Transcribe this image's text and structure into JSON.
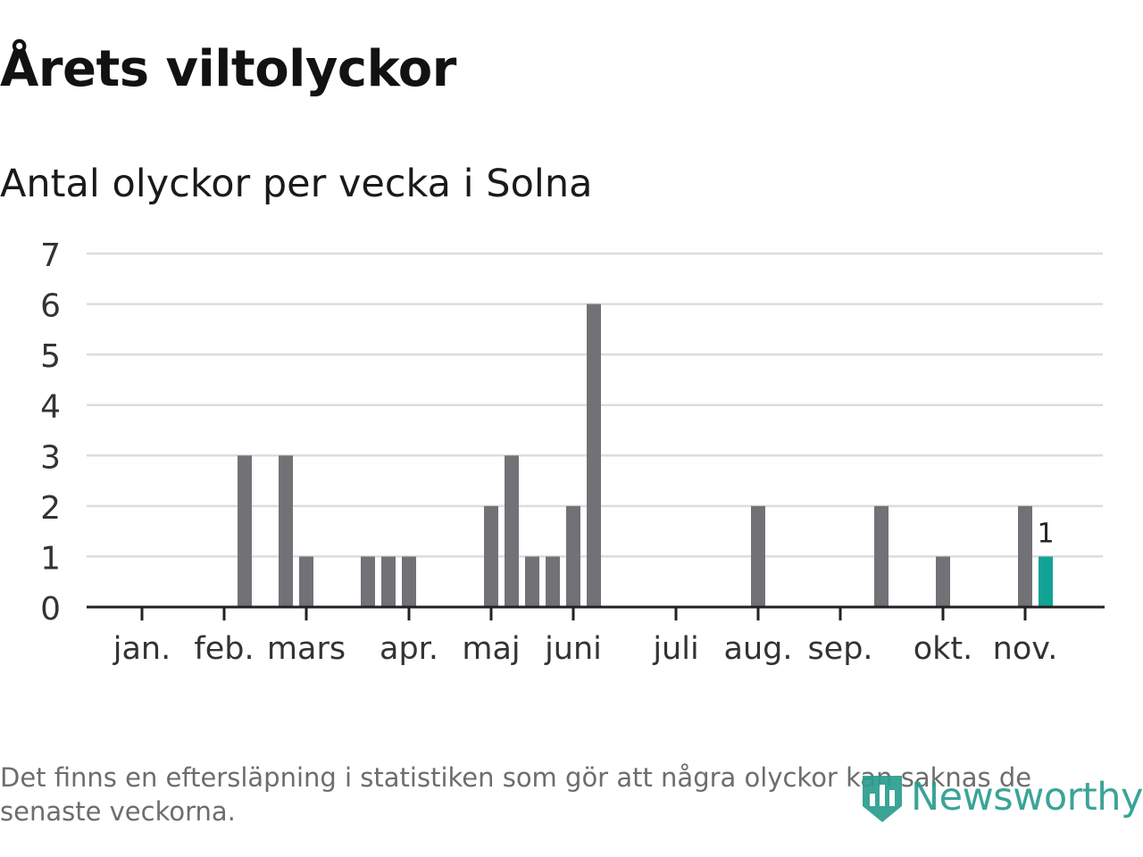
{
  "header": {
    "title": "Årets viltolyckor",
    "subtitle": "Antal olyckor per vecka i Solna"
  },
  "footnote": "Det finns en eftersläpning i statistiken som gör att några olyckor kan saknas de senaste veckorna.",
  "brand": {
    "name": "Newsworthy"
  },
  "colors": {
    "bar": "#727176",
    "highlight": "#13a296",
    "grid": "#dcdcdc",
    "axis": "#222222",
    "brand": "#2a9d8f"
  },
  "chart_data": {
    "type": "bar",
    "title": "Antal olyckor per vecka i Solna",
    "xlabel": "",
    "ylabel": "",
    "ylim": [
      0,
      7
    ],
    "yticks": [
      0,
      1,
      2,
      3,
      4,
      5,
      6,
      7
    ],
    "grid": true,
    "week_range": [
      1,
      48
    ],
    "month_ticks": [
      {
        "label": "jan.",
        "week": 1
      },
      {
        "label": "feb.",
        "week": 5
      },
      {
        "label": "mars",
        "week": 9
      },
      {
        "label": "apr.",
        "week": 14
      },
      {
        "label": "maj",
        "week": 18
      },
      {
        "label": "juni",
        "week": 22
      },
      {
        "label": "juli",
        "week": 27
      },
      {
        "label": "aug.",
        "week": 31
      },
      {
        "label": "sep.",
        "week": 35
      },
      {
        "label": "okt.",
        "week": 40
      },
      {
        "label": "nov.",
        "week": 44
      }
    ],
    "series": [
      {
        "name": "Antal olyckor",
        "points": [
          {
            "week": 6,
            "value": 3
          },
          {
            "week": 8,
            "value": 3
          },
          {
            "week": 9,
            "value": 1
          },
          {
            "week": 12,
            "value": 1
          },
          {
            "week": 13,
            "value": 1
          },
          {
            "week": 14,
            "value": 1
          },
          {
            "week": 18,
            "value": 2
          },
          {
            "week": 19,
            "value": 3
          },
          {
            "week": 20,
            "value": 1
          },
          {
            "week": 21,
            "value": 1
          },
          {
            "week": 22,
            "value": 2
          },
          {
            "week": 23,
            "value": 6
          },
          {
            "week": 31,
            "value": 2
          },
          {
            "week": 37,
            "value": 2
          },
          {
            "week": 40,
            "value": 1
          },
          {
            "week": 44,
            "value": 2
          },
          {
            "week": 45,
            "value": 1,
            "highlight": true,
            "label": "1"
          }
        ]
      }
    ]
  }
}
